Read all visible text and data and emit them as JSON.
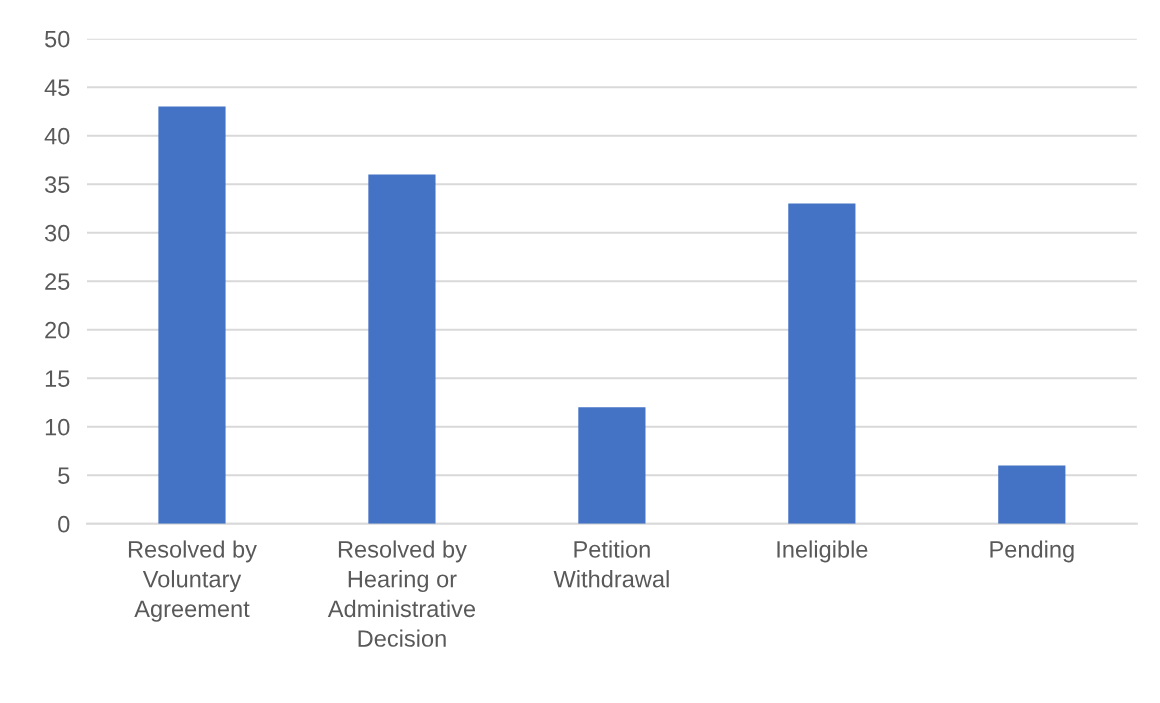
{
  "chart_data": {
    "type": "bar",
    "categories": [
      "Resolved by\nVoluntary\nAgreement",
      "Resolved by\nHearing or\nAdministrative\nDecision",
      "Petition\nWithdrawal",
      "Ineligible",
      "Pending"
    ],
    "values": [
      43,
      36,
      12,
      33,
      6
    ],
    "color": "#4472c4",
    "ylim": [
      0,
      50
    ],
    "yticks": [
      0,
      5,
      10,
      15,
      20,
      25,
      30,
      35,
      40,
      45,
      50
    ],
    "grid": "y",
    "legend": false
  }
}
